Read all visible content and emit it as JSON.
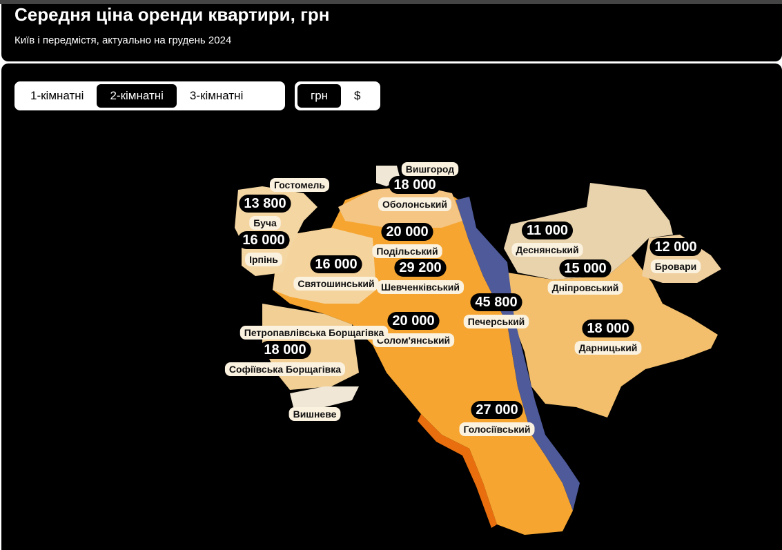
{
  "header": {
    "title": "Середня ціна оренди квартири, грн",
    "subtitle": "Київ і передмістя, актуально на грудень 2024"
  },
  "room_tabs": [
    "1-кімнатні",
    "2-кімнатні",
    "3-кімнатні"
  ],
  "currency_tabs": [
    "грн",
    "$"
  ],
  "regions": [
    {
      "name": "Вишгород"
    },
    {
      "name": "Оболонський",
      "price": "18 000"
    },
    {
      "name": "Гостомель"
    },
    {
      "name": "Буча",
      "price": "13 800"
    },
    {
      "name": "Ірпінь",
      "price": "16 000"
    },
    {
      "name": "Подільський",
      "price": "20 000"
    },
    {
      "name": "Святошинський",
      "price": "16 000"
    },
    {
      "name": "Шевченківський",
      "price": "29 200"
    },
    {
      "name": "Деснянський",
      "price": "11 000"
    },
    {
      "name": "Бровари",
      "price": "12 000"
    },
    {
      "name": "Дніпровський",
      "price": "15 000"
    },
    {
      "name": "Печерський",
      "price": "45 800"
    },
    {
      "name": "Солом'янський",
      "price": "20 000"
    },
    {
      "name": "Дарницький",
      "price": "18 000"
    },
    {
      "name": "Петропавлівська Борщагівка"
    },
    {
      "name": "Софіївська Борщагівка",
      "price": "18 000"
    },
    {
      "name": "Вишневе"
    },
    {
      "name": "Голосіївський",
      "price": "27 000"
    }
  ]
}
